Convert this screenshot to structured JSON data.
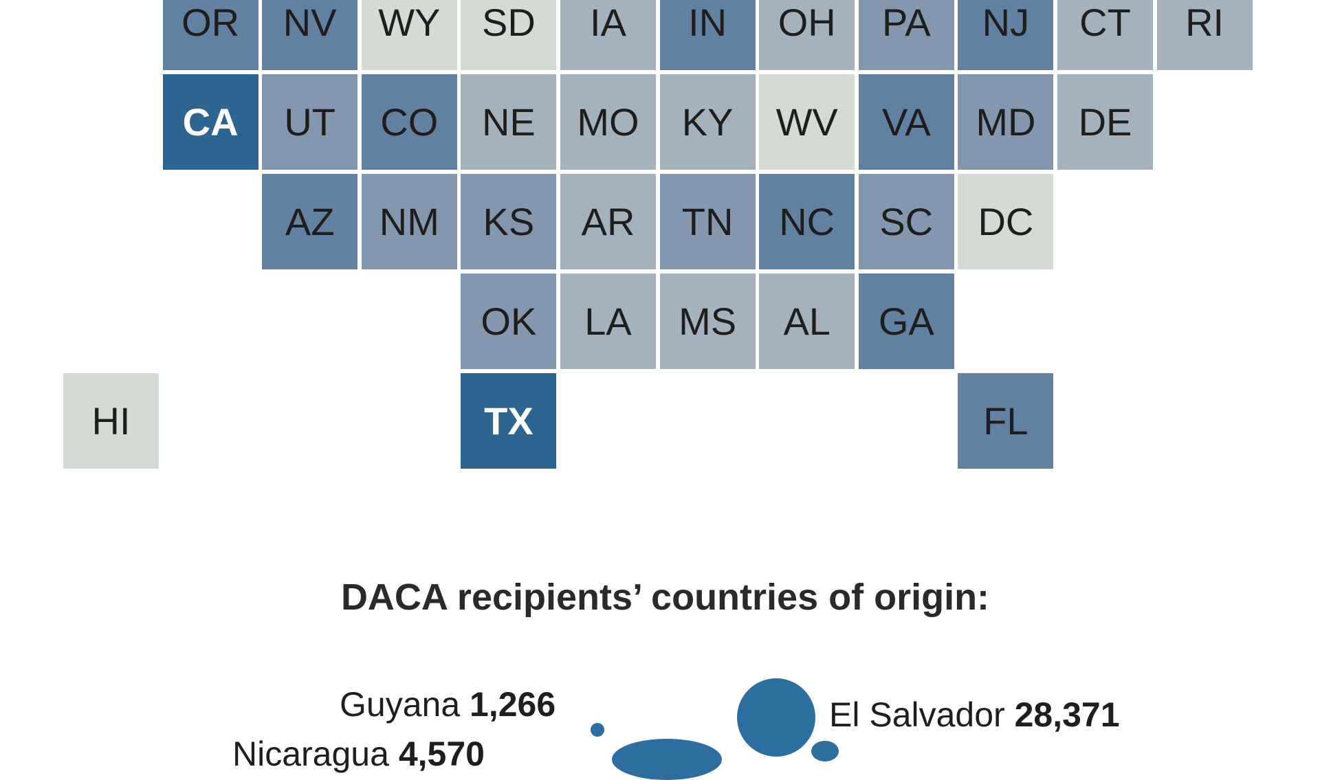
{
  "chart_data": {
    "type": "heatmap",
    "title": "DACA recipients’ countries of origin:",
    "color_scale": [
      "#d3dbd4",
      "#a4b2be",
      "#8398ae",
      "#62809f",
      "#2e6590"
    ],
    "tiles": [
      {
        "state": "OR",
        "row": 0,
        "col": 1,
        "level": 3
      },
      {
        "state": "NV",
        "row": 0,
        "col": 2,
        "level": 3
      },
      {
        "state": "WY",
        "row": 0,
        "col": 3,
        "level": 0
      },
      {
        "state": "SD",
        "row": 0,
        "col": 4,
        "level": 0
      },
      {
        "state": "IA",
        "row": 0,
        "col": 5,
        "level": 1
      },
      {
        "state": "IN",
        "row": 0,
        "col": 6,
        "level": 3
      },
      {
        "state": "OH",
        "row": 0,
        "col": 7,
        "level": 1
      },
      {
        "state": "PA",
        "row": 0,
        "col": 8,
        "level": 2
      },
      {
        "state": "NJ",
        "row": 0,
        "col": 9,
        "level": 3
      },
      {
        "state": "CT",
        "row": 0,
        "col": 10,
        "level": 1
      },
      {
        "state": "RI",
        "row": 0,
        "col": 11,
        "level": 1
      },
      {
        "state": "CA",
        "row": 1,
        "col": 1,
        "level": 4
      },
      {
        "state": "UT",
        "row": 1,
        "col": 2,
        "level": 2
      },
      {
        "state": "CO",
        "row": 1,
        "col": 3,
        "level": 3
      },
      {
        "state": "NE",
        "row": 1,
        "col": 4,
        "level": 1
      },
      {
        "state": "MO",
        "row": 1,
        "col": 5,
        "level": 1
      },
      {
        "state": "KY",
        "row": 1,
        "col": 6,
        "level": 1
      },
      {
        "state": "WV",
        "row": 1,
        "col": 7,
        "level": 0
      },
      {
        "state": "VA",
        "row": 1,
        "col": 8,
        "level": 3
      },
      {
        "state": "MD",
        "row": 1,
        "col": 9,
        "level": 2
      },
      {
        "state": "DE",
        "row": 1,
        "col": 10,
        "level": 1
      },
      {
        "state": "AZ",
        "row": 2,
        "col": 2,
        "level": 3
      },
      {
        "state": "NM",
        "row": 2,
        "col": 3,
        "level": 2
      },
      {
        "state": "KS",
        "row": 2,
        "col": 4,
        "level": 2
      },
      {
        "state": "AR",
        "row": 2,
        "col": 5,
        "level": 1
      },
      {
        "state": "TN",
        "row": 2,
        "col": 6,
        "level": 2
      },
      {
        "state": "NC",
        "row": 2,
        "col": 7,
        "level": 3
      },
      {
        "state": "SC",
        "row": 2,
        "col": 8,
        "level": 2
      },
      {
        "state": "DC",
        "row": 2,
        "col": 9,
        "level": 0
      },
      {
        "state": "OK",
        "row": 3,
        "col": 4,
        "level": 2
      },
      {
        "state": "LA",
        "row": 3,
        "col": 5,
        "level": 1
      },
      {
        "state": "MS",
        "row": 3,
        "col": 6,
        "level": 1
      },
      {
        "state": "AL",
        "row": 3,
        "col": 7,
        "level": 1
      },
      {
        "state": "GA",
        "row": 3,
        "col": 8,
        "level": 3
      },
      {
        "state": "HI",
        "row": 4,
        "col": 0,
        "level": 0
      },
      {
        "state": "TX",
        "row": 4,
        "col": 4,
        "level": 4
      },
      {
        "state": "FL",
        "row": 4,
        "col": 9,
        "level": 3
      }
    ],
    "bubbles": [
      {
        "country": "Guyana",
        "value": "1,266",
        "count": 1266
      },
      {
        "country": "El Salvador",
        "value": "28,371",
        "count": 28371
      },
      {
        "country": "Nicaragua",
        "value": "4,570",
        "count": 4570
      }
    ],
    "bubble_color": "#2e6e9e"
  }
}
